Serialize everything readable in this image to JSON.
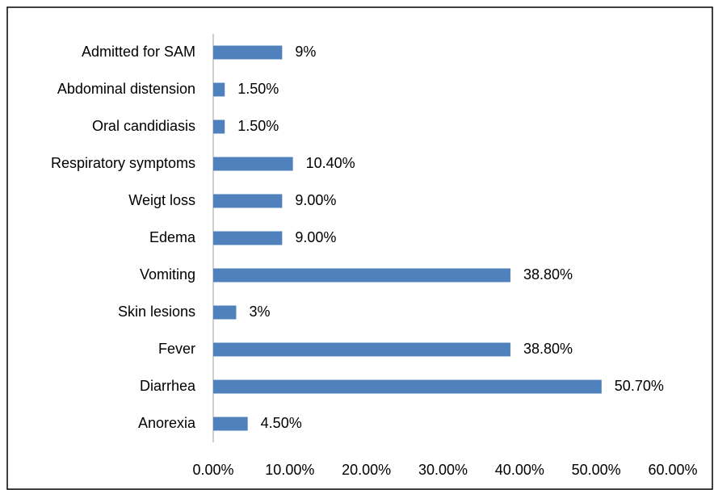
{
  "chart_data": {
    "type": "bar",
    "orientation": "horizontal",
    "categories": [
      "Admitted for SAM",
      "Abdominal distension",
      "Oral candidiasis",
      "Respiratory symptoms",
      "Weigt loss",
      "Edema",
      "Vomiting",
      "Skin lesions",
      "Fever",
      "Diarrhea",
      "Anorexia"
    ],
    "values": [
      9,
      1.5,
      1.5,
      10.4,
      9,
      9,
      38.8,
      3,
      38.8,
      50.7,
      4.5
    ],
    "value_labels": [
      "9%",
      "1.50%",
      "1.50%",
      "10.40%",
      "9.00%",
      "9.00%",
      "38.80%",
      "3%",
      "38.80%",
      "50.70%",
      "4.50%"
    ],
    "color": "#4f81bd",
    "xlim": [
      0,
      60
    ],
    "xticks": [
      {
        "value": 0,
        "label": "0.00%"
      },
      {
        "value": 10,
        "label": "10.00%"
      },
      {
        "value": 20,
        "label": "20.00%"
      },
      {
        "value": 30,
        "label": "30.00%"
      },
      {
        "value": 40,
        "label": "40.00%"
      },
      {
        "value": 50,
        "label": "50.00%"
      },
      {
        "value": 60,
        "label": "60.00%"
      }
    ],
    "grid": false
  }
}
